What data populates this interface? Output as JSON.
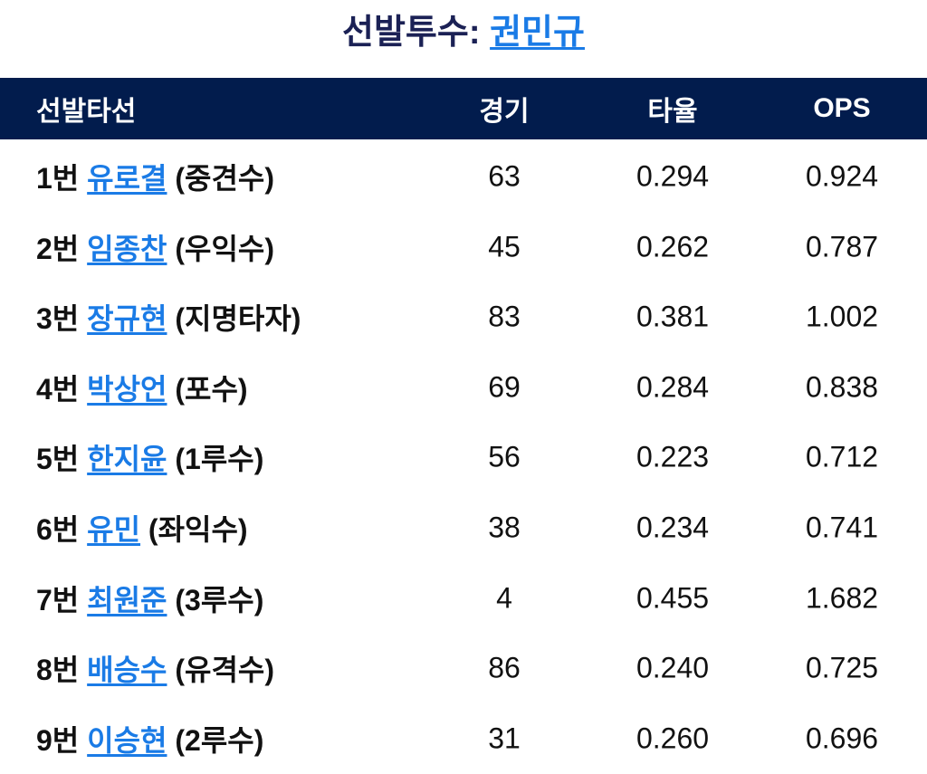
{
  "title": {
    "label": "선발투수:",
    "pitcher": "권민규"
  },
  "colors": {
    "header_bg": "#021c4d",
    "title": "#1b2155",
    "link": "#1a7be6"
  },
  "table": {
    "headers": [
      "선발타선",
      "경기",
      "타율",
      "OPS"
    ],
    "rows": [
      {
        "order": "1번",
        "name": "유로결",
        "position": "(중견수)",
        "games": "63",
        "avg": "0.294",
        "ops": "0.924"
      },
      {
        "order": "2번",
        "name": "임종찬",
        "position": "(우익수)",
        "games": "45",
        "avg": "0.262",
        "ops": "0.787"
      },
      {
        "order": "3번",
        "name": "장규현",
        "position": "(지명타자)",
        "games": "83",
        "avg": "0.381",
        "ops": "1.002"
      },
      {
        "order": "4번",
        "name": "박상언",
        "position": "(포수)",
        "games": "69",
        "avg": "0.284",
        "ops": "0.838"
      },
      {
        "order": "5번",
        "name": "한지윤",
        "position": "(1루수)",
        "games": "56",
        "avg": "0.223",
        "ops": "0.712"
      },
      {
        "order": "6번",
        "name": "유민",
        "position": "(좌익수)",
        "games": "38",
        "avg": "0.234",
        "ops": "0.741"
      },
      {
        "order": "7번",
        "name": "최원준",
        "position": "(3루수)",
        "games": "4",
        "avg": "0.455",
        "ops": "1.682"
      },
      {
        "order": "8번",
        "name": "배승수",
        "position": "(유격수)",
        "games": "86",
        "avg": "0.240",
        "ops": "0.725"
      },
      {
        "order": "9번",
        "name": "이승현",
        "position": "(2루수)",
        "games": "31",
        "avg": "0.260",
        "ops": "0.696"
      }
    ]
  }
}
